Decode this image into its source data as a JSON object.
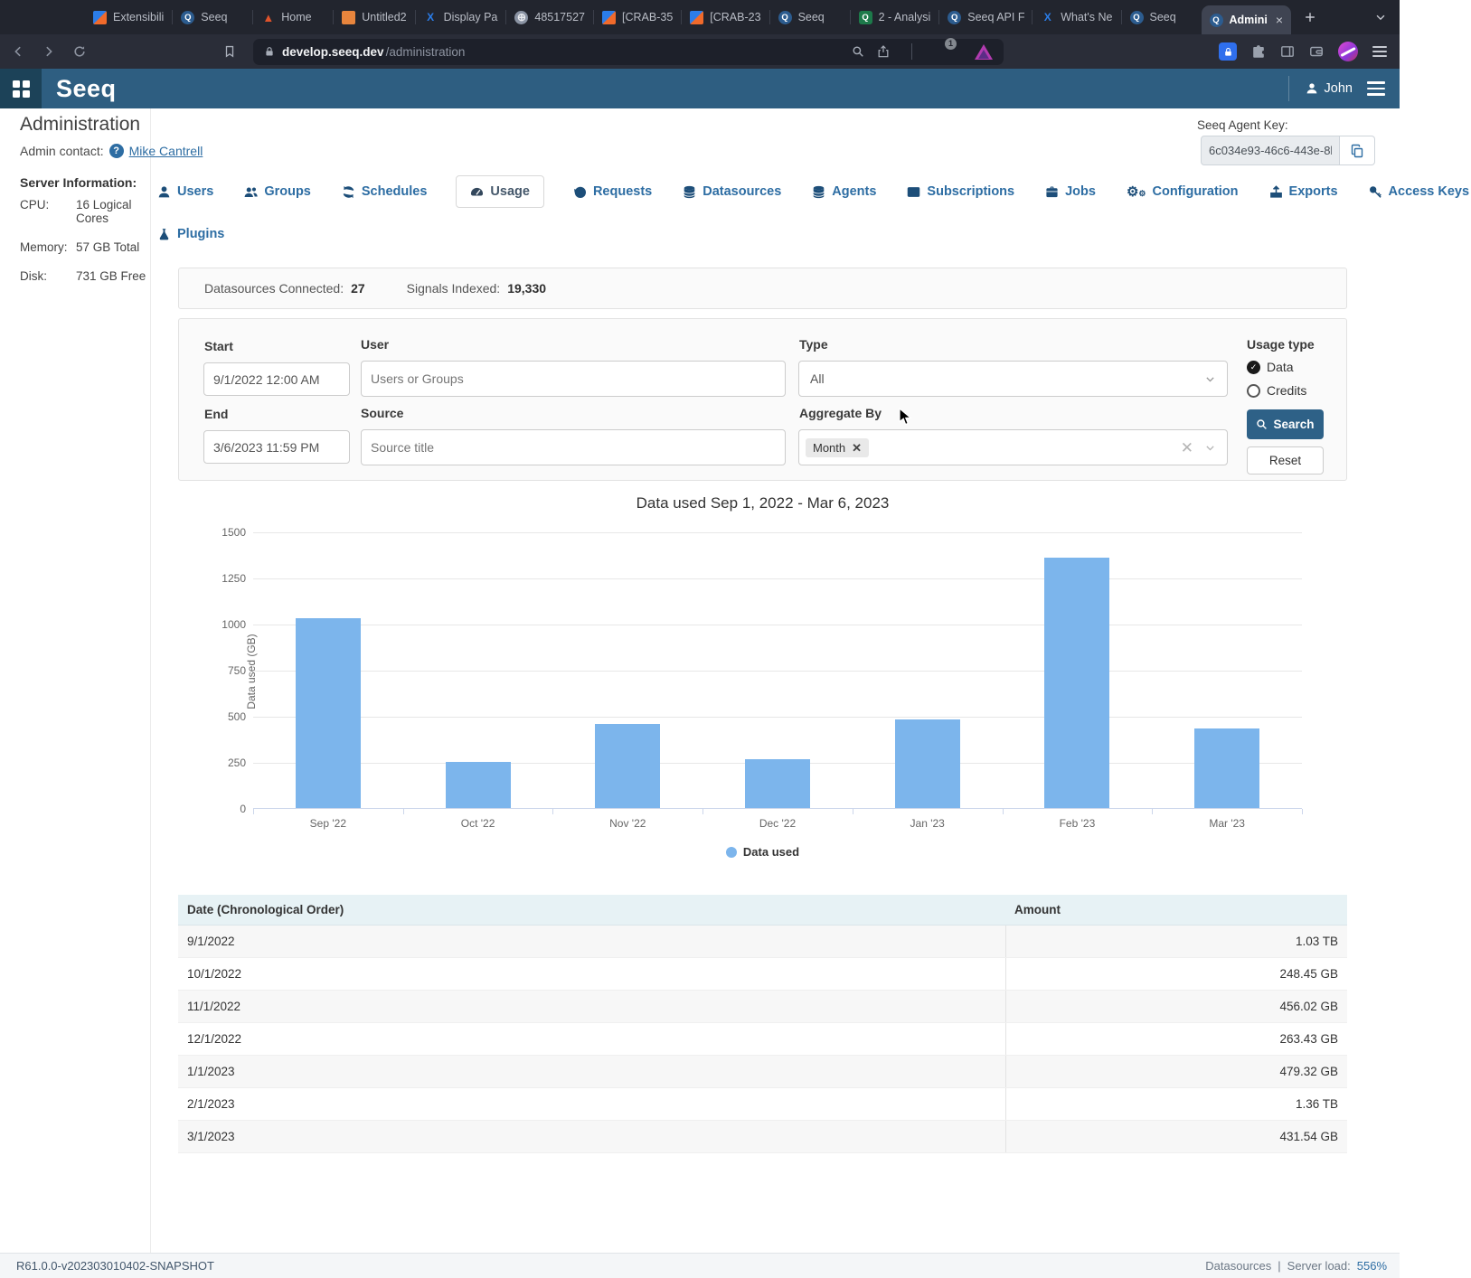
{
  "browser": {
    "tabs": [
      {
        "label": "Extensibili",
        "icon": "jira-icon",
        "fav": "jira",
        "glyph": ""
      },
      {
        "label": "Seeq",
        "icon": "seeq-icon",
        "fav": "seeq",
        "glyph": "Q"
      },
      {
        "label": "Home",
        "icon": "home-icon",
        "fav": "home",
        "glyph": "▲"
      },
      {
        "label": "Untitled2",
        "icon": "notebook-icon",
        "fav": "book",
        "glyph": ""
      },
      {
        "label": "Display Pa",
        "icon": "confluence-icon",
        "fav": "confluence",
        "glyph": "X"
      },
      {
        "label": "48517527",
        "icon": "globe-icon",
        "fav": "globe",
        "glyph": "⊕"
      },
      {
        "label": "[CRAB-35",
        "icon": "jira-icon",
        "fav": "jira",
        "glyph": ""
      },
      {
        "label": "[CRAB-23",
        "icon": "jira-icon",
        "fav": "jira",
        "glyph": ""
      },
      {
        "label": "Seeq",
        "icon": "seeq-icon",
        "fav": "seeq",
        "glyph": "Q"
      },
      {
        "label": "2 - Analysi",
        "icon": "seeq-analysis-icon",
        "fav": "seeq-green",
        "glyph": "Q"
      },
      {
        "label": "Seeq API F",
        "icon": "seeq-icon",
        "fav": "seeq",
        "glyph": "Q"
      },
      {
        "label": "What's Ne",
        "icon": "confluence-icon",
        "fav": "confluence",
        "glyph": "X"
      },
      {
        "label": "Seeq",
        "icon": "seeq-icon",
        "fav": "seeq",
        "glyph": "Q"
      },
      {
        "label": "Admini",
        "icon": "seeq-icon",
        "fav": "seeq",
        "glyph": "Q",
        "active": true
      }
    ],
    "url_host": "develop.seeq.dev",
    "url_path": "/administration",
    "shield_badge": "1"
  },
  "app_header": {
    "logo": "Seeq",
    "user": "John"
  },
  "page": {
    "title": "Administration",
    "admin_contact_label": "Admin contact:",
    "admin_contact_name": "Mike Cantrell",
    "server_info_heading": "Server Information:",
    "server_info": [
      {
        "label": "CPU:",
        "value": "16 Logical Cores"
      },
      {
        "label": "Memory:",
        "value": "57 GB Total"
      },
      {
        "label": "Disk:",
        "value": "731 GB Free"
      }
    ],
    "agent_key_label": "Seeq Agent Key:",
    "agent_key_value": "6c034e93-46c6-443e-8b"
  },
  "nav": {
    "row1": [
      {
        "label": "Users",
        "icon": "user-icon"
      },
      {
        "label": "Groups",
        "icon": "users-icon"
      },
      {
        "label": "Schedules",
        "icon": "sync-icon"
      },
      {
        "label": "Usage",
        "icon": "gauge-icon",
        "active": true
      },
      {
        "label": "Requests",
        "icon": "history-icon"
      },
      {
        "label": "Datasources",
        "icon": "database-icon"
      },
      {
        "label": "Agents",
        "icon": "database-icon"
      },
      {
        "label": "Subscriptions",
        "icon": "subscriptions-icon"
      },
      {
        "label": "Jobs",
        "icon": "briefcase-icon"
      },
      {
        "label": "Configuration",
        "icon": "gears-icon"
      },
      {
        "label": "Exports",
        "icon": "export-icon"
      },
      {
        "label": "Access Keys",
        "icon": "key-icon"
      }
    ],
    "row2": [
      {
        "label": "Plugins",
        "icon": "flask-icon"
      }
    ]
  },
  "stats": {
    "datasources_label": "Datasources Connected:",
    "datasources_value": "27",
    "signals_label": "Signals Indexed:",
    "signals_value": "19,330"
  },
  "filters": {
    "start_label": "Start",
    "start_value": "9/1/2022 12:00 AM",
    "end_label": "End",
    "end_value": "3/6/2023 11:59 PM",
    "user_label": "User",
    "user_placeholder": "Users or Groups",
    "source_label": "Source",
    "source_placeholder": "Source title",
    "type_label": "Type",
    "type_value": "All",
    "aggregate_label": "Aggregate By",
    "aggregate_chip": "Month",
    "usage_type_label": "Usage type",
    "radio_data_label": "Data",
    "radio_credits_label": "Credits",
    "search_label": "Search",
    "reset_label": "Reset"
  },
  "chart_data": {
    "type": "bar",
    "title": "Data used Sep 1, 2022 - Mar 6, 2023",
    "ylabel": "Data used (GB)",
    "xlabel": "",
    "ylim": [
      0,
      1500
    ],
    "ytick_step": 250,
    "grid": true,
    "legend_position": "bottom",
    "bar_color": "#7cb5ec",
    "categories": [
      "Sep '22",
      "Oct '22",
      "Nov '22",
      "Dec '22",
      "Jan '23",
      "Feb '23",
      "Mar '23"
    ],
    "series": [
      {
        "name": "Data used",
        "values": [
          1030,
          248.45,
          456.02,
          263.43,
          479.32,
          1360,
          431.54
        ]
      }
    ]
  },
  "table": {
    "headers": [
      "Date (Chronological Order)",
      "Amount"
    ],
    "rows": [
      [
        "9/1/2022",
        "1.03 TB"
      ],
      [
        "10/1/2022",
        "248.45 GB"
      ],
      [
        "11/1/2022",
        "456.02 GB"
      ],
      [
        "12/1/2022",
        "263.43 GB"
      ],
      [
        "1/1/2023",
        "479.32 GB"
      ],
      [
        "2/1/2023",
        "1.36 TB"
      ],
      [
        "3/1/2023",
        "431.54 GB"
      ]
    ]
  },
  "footer": {
    "version": "R61.0.0-v202303010402-SNAPSHOT",
    "datasources_label": "Datasources",
    "separator": "|",
    "server_load_label": "Server load:",
    "server_load_value": "556%"
  }
}
